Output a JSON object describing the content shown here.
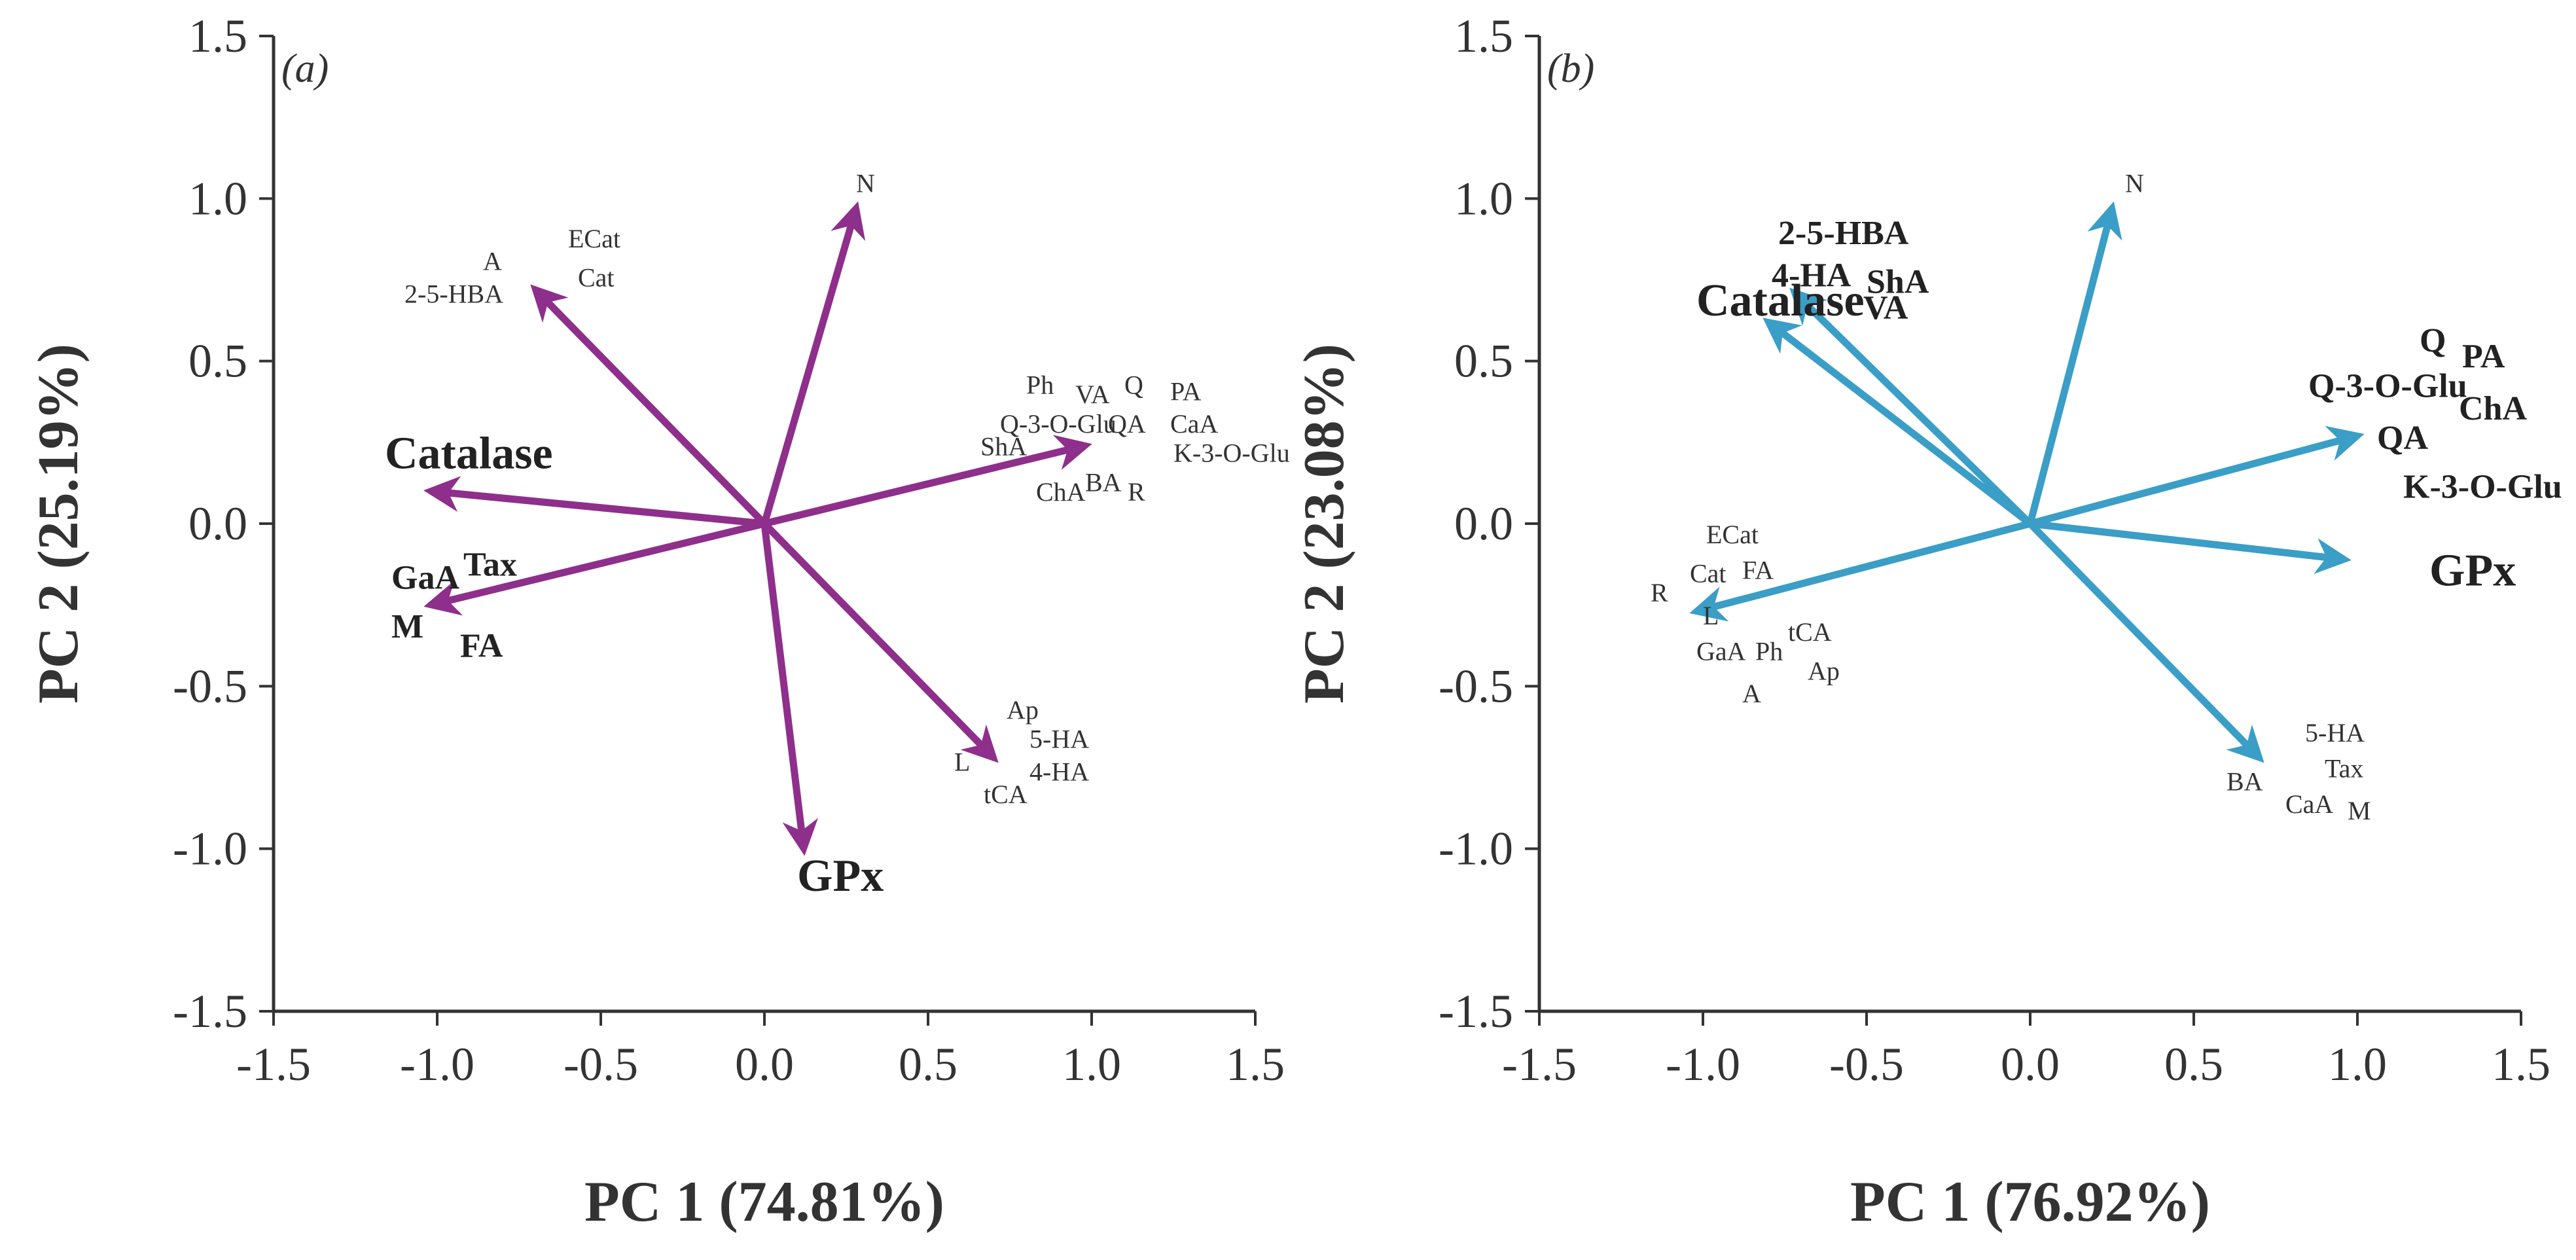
{
  "chart_data": [
    {
      "type": "biplot",
      "panel_label": "(a)",
      "xlabel": "PC 1 (74.81%)",
      "ylabel": "PC 2 (25.19%)",
      "xlim": [
        -1.5,
        1.5
      ],
      "ylim": [
        -1.5,
        1.5
      ],
      "xticks": [
        "-1.5",
        "-1.0",
        "-0.5",
        "0.0",
        "0.5",
        "1.0",
        "1.5"
      ],
      "yticks": [
        "1.5",
        "1.0",
        "0.5",
        "0.0",
        "-0.5",
        "-1.0",
        "-1.5"
      ],
      "color": "#8e2f8c",
      "vectors": [
        {
          "name": "N",
          "x": 0.28,
          "y": 0.97
        },
        {
          "name": "2-5-HBA",
          "x": -0.7,
          "y": 0.72
        },
        {
          "name": "Catalase",
          "x": -1.02,
          "y": 0.1
        },
        {
          "name": "GaA-M",
          "x": -1.02,
          "y": -0.25
        },
        {
          "name": "GPx",
          "x": 0.12,
          "y": -1.0
        },
        {
          "name": "4-HA",
          "x": 0.7,
          "y": -0.72
        },
        {
          "name": "K-3-O-Glu",
          "x": 0.98,
          "y": 0.24
        }
      ],
      "labels": [
        {
          "text": "N",
          "x": 0.28,
          "y": 1.02,
          "size": "small"
        },
        {
          "text": "ECat",
          "x": -0.6,
          "y": 0.85,
          "size": "small"
        },
        {
          "text": "A",
          "x": -0.86,
          "y": 0.78,
          "size": "small"
        },
        {
          "text": "Cat",
          "x": -0.57,
          "y": 0.73,
          "size": "small"
        },
        {
          "text": "2-5-HBA",
          "x": -1.1,
          "y": 0.68,
          "size": "small"
        },
        {
          "text": "Ph",
          "x": 0.8,
          "y": 0.4,
          "size": "small"
        },
        {
          "text": "VA",
          "x": 0.95,
          "y": 0.37,
          "size": "small"
        },
        {
          "text": "Q",
          "x": 1.1,
          "y": 0.4,
          "size": "small"
        },
        {
          "text": "PA",
          "x": 1.24,
          "y": 0.38,
          "size": "small"
        },
        {
          "text": "Q-3-O-Glu",
          "x": 0.72,
          "y": 0.28,
          "size": "small"
        },
        {
          "text": "QA",
          "x": 1.05,
          "y": 0.28,
          "size": "small"
        },
        {
          "text": "CaA",
          "x": 1.24,
          "y": 0.28,
          "size": "small"
        },
        {
          "text": "ShA",
          "x": 0.66,
          "y": 0.21,
          "size": "small"
        },
        {
          "text": "K-3-O-Glu",
          "x": 1.25,
          "y": 0.19,
          "size": "small"
        },
        {
          "text": "ChA",
          "x": 0.83,
          "y": 0.07,
          "size": "small"
        },
        {
          "text": "BA",
          "x": 0.98,
          "y": 0.1,
          "size": "small"
        },
        {
          "text": "R",
          "x": 1.11,
          "y": 0.07,
          "size": "small"
        },
        {
          "text": "Catalase",
          "x": -1.16,
          "y": 0.17,
          "size": "big"
        },
        {
          "text": "GaA",
          "x": -1.14,
          "y": -0.2,
          "size": "mid"
        },
        {
          "text": "Tax",
          "x": -0.92,
          "y": -0.16,
          "size": "mid"
        },
        {
          "text": "M",
          "x": -1.14,
          "y": -0.35,
          "size": "mid"
        },
        {
          "text": "FA",
          "x": -0.93,
          "y": -0.41,
          "size": "mid"
        },
        {
          "text": "Ap",
          "x": 0.74,
          "y": -0.6,
          "size": "small"
        },
        {
          "text": "5-HA",
          "x": 0.81,
          "y": -0.69,
          "size": "small"
        },
        {
          "text": "L",
          "x": 0.58,
          "y": -0.76,
          "size": "small"
        },
        {
          "text": "4-HA",
          "x": 0.81,
          "y": -0.79,
          "size": "small"
        },
        {
          "text": "tCA",
          "x": 0.67,
          "y": -0.86,
          "size": "small"
        },
        {
          "text": "GPx",
          "x": 0.1,
          "y": -1.13,
          "size": "big"
        }
      ]
    },
    {
      "type": "biplot",
      "panel_label": "(b)",
      "xlabel": "PC 1 (76.92%)",
      "ylabel": "PC 2 (23.08%)",
      "xlim": [
        -1.5,
        1.5
      ],
      "ylim": [
        -1.5,
        1.5
      ],
      "xticks": [
        "-1.5",
        "-1.0",
        "-0.5",
        "0.0",
        "0.5",
        "1.0",
        "1.5"
      ],
      "yticks": [
        "1.5",
        "1.0",
        "0.5",
        "0.0",
        "-0.5",
        "-1.0",
        "-1.5"
      ],
      "color": "#3a9ec7",
      "vectors": [
        {
          "name": "N",
          "x": 0.25,
          "y": 0.97
        },
        {
          "name": "ShA",
          "x": -0.72,
          "y": 0.71
        },
        {
          "name": "Catalase",
          "x": -0.8,
          "y": 0.62
        },
        {
          "name": "QA",
          "x": 1.0,
          "y": 0.27
        },
        {
          "name": "GPx",
          "x": 0.96,
          "y": -0.11
        },
        {
          "name": "L",
          "x": -1.02,
          "y": -0.27
        },
        {
          "name": "5-HA",
          "x": 0.7,
          "y": -0.72
        }
      ],
      "labels": [
        {
          "text": "N",
          "x": 0.29,
          "y": 1.02,
          "size": "small"
        },
        {
          "text": "2-5-HBA",
          "x": -0.77,
          "y": 0.86,
          "size": "mid"
        },
        {
          "text": "4-HA",
          "x": -0.79,
          "y": 0.73,
          "size": "mid"
        },
        {
          "text": "ShA",
          "x": -0.5,
          "y": 0.71,
          "size": "mid"
        },
        {
          "text": "VA",
          "x": -0.51,
          "y": 0.63,
          "size": "mid"
        },
        {
          "text": "Catalase",
          "x": -1.02,
          "y": 0.64,
          "size": "big"
        },
        {
          "text": "Q",
          "x": 1.19,
          "y": 0.53,
          "size": "mid"
        },
        {
          "text": "PA",
          "x": 1.32,
          "y": 0.48,
          "size": "mid"
        },
        {
          "text": "Q-3-O-Glu",
          "x": 0.85,
          "y": 0.39,
          "size": "mid"
        },
        {
          "text": "ChA",
          "x": 1.31,
          "y": 0.32,
          "size": "mid"
        },
        {
          "text": "QA",
          "x": 1.06,
          "y": 0.23,
          "size": "mid"
        },
        {
          "text": "K-3-O-Glu",
          "x": 1.14,
          "y": 0.08,
          "size": "mid"
        },
        {
          "text": "GPx",
          "x": 1.22,
          "y": -0.19,
          "size": "big"
        },
        {
          "text": "ECat",
          "x": -0.99,
          "y": -0.06,
          "size": "small"
        },
        {
          "text": "Cat",
          "x": -1.04,
          "y": -0.18,
          "size": "small"
        },
        {
          "text": "FA",
          "x": -0.88,
          "y": -0.17,
          "size": "small"
        },
        {
          "text": "R",
          "x": -1.16,
          "y": -0.24,
          "size": "small"
        },
        {
          "text": "L",
          "x": -1.0,
          "y": -0.31,
          "size": "small"
        },
        {
          "text": "GaA",
          "x": -1.02,
          "y": -0.42,
          "size": "small"
        },
        {
          "text": "Ph",
          "x": -0.84,
          "y": -0.42,
          "size": "small"
        },
        {
          "text": "tCA",
          "x": -0.74,
          "y": -0.36,
          "size": "small"
        },
        {
          "text": "Ap",
          "x": -0.68,
          "y": -0.48,
          "size": "small"
        },
        {
          "text": "A",
          "x": -0.88,
          "y": -0.55,
          "size": "small"
        },
        {
          "text": "5-HA",
          "x": 0.84,
          "y": -0.67,
          "size": "small"
        },
        {
          "text": "BA",
          "x": 0.6,
          "y": -0.82,
          "size": "small"
        },
        {
          "text": "Tax",
          "x": 0.9,
          "y": -0.78,
          "size": "small"
        },
        {
          "text": "CaA",
          "x": 0.78,
          "y": -0.89,
          "size": "small"
        },
        {
          "text": "M",
          "x": 0.97,
          "y": -0.91,
          "size": "small"
        }
      ]
    }
  ]
}
